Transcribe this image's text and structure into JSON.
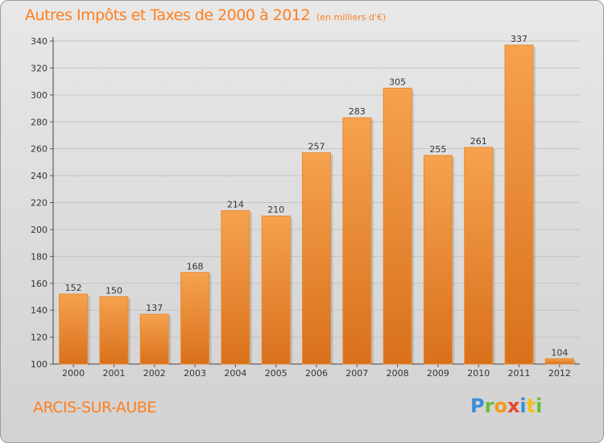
{
  "header": {
    "title": "Autres Impôts et Taxes de 2000 à 2012",
    "unit": "(en milliers d'€)"
  },
  "footer": {
    "commune": "ARCIS-SUR-AUBE",
    "logo_letters": [
      {
        "ch": "P",
        "color": "#3a8fd6"
      },
      {
        "ch": "r",
        "color": "#6cbd3a"
      },
      {
        "ch": "o",
        "color": "#f29a1b"
      },
      {
        "ch": "x",
        "color": "#e8452f"
      },
      {
        "ch": "i",
        "color": "#3a8fd6"
      },
      {
        "ch": "t",
        "color": "#f2c01b"
      },
      {
        "ch": "i",
        "color": "#6cbd3a"
      }
    ]
  },
  "colors": {
    "accent": "#ff7f1e",
    "bar_light": "#f6a24e",
    "bar_dark": "#d9701c",
    "grid": "#c4c4c4"
  },
  "chart_data": {
    "type": "bar",
    "title": "Autres Impôts et Taxes de 2000 à 2012",
    "subtitle": "(en milliers d'€)",
    "categories": [
      "2000",
      "2001",
      "2002",
      "2003",
      "2004",
      "2005",
      "2006",
      "2007",
      "2008",
      "2009",
      "2010",
      "2011",
      "2012"
    ],
    "values": [
      152,
      150,
      137,
      168,
      214,
      210,
      257,
      283,
      305,
      255,
      261,
      337,
      104
    ],
    "ylim": [
      100,
      340
    ],
    "yticks": [
      100,
      120,
      140,
      160,
      180,
      200,
      220,
      240,
      260,
      280,
      300,
      320,
      340
    ],
    "grid": true,
    "xlabel": "",
    "ylabel": ""
  }
}
